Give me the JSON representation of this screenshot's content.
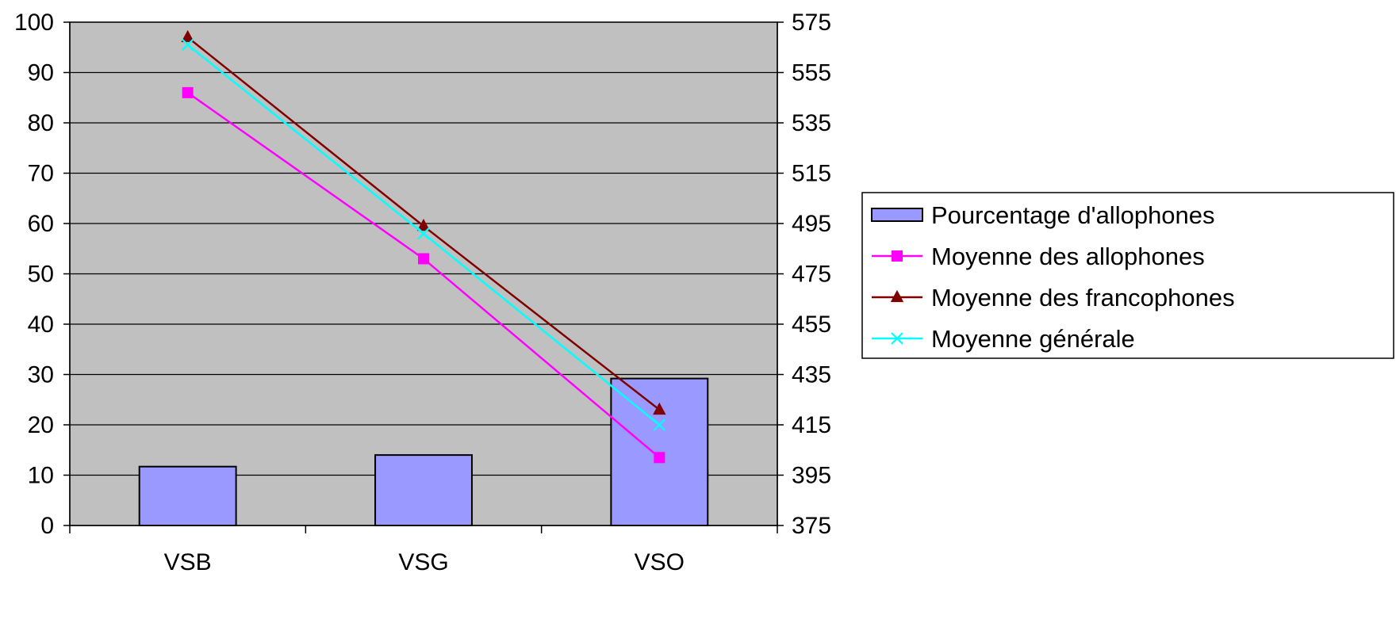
{
  "chart_data": {
    "type": "bar",
    "title": "",
    "xlabel": "",
    "ylabel": "",
    "y2label": "",
    "categories": [
      "VSB",
      "VSG",
      "VSO"
    ],
    "ylim": [
      0,
      100
    ],
    "y2lim": [
      375,
      575
    ],
    "yticks": [
      "0",
      "10",
      "20",
      "30",
      "40",
      "50",
      "60",
      "70",
      "80",
      "90",
      "100"
    ],
    "y2ticks": [
      "375",
      "395",
      "415",
      "435",
      "455",
      "475",
      "495",
      "515",
      "535",
      "555",
      "575"
    ],
    "grid": true,
    "legend_position": "right",
    "plot_background": "#C0C0C0",
    "series": [
      {
        "name": "Pourcentage d'allophones",
        "type": "bar",
        "axis": "left",
        "color": "#9999FF",
        "values": [
          11.7,
          14,
          29.2
        ]
      },
      {
        "name": "Moyenne des allophones",
        "type": "line",
        "axis": "right",
        "color": "#FF00FF",
        "marker": "square",
        "values": [
          547,
          481,
          402
        ]
      },
      {
        "name": "Moyenne des francophones",
        "type": "line",
        "axis": "right",
        "color": "#800000",
        "marker": "triangle",
        "values": [
          569,
          494,
          421
        ]
      },
      {
        "name": "Moyenne générale",
        "type": "line",
        "axis": "right",
        "color": "#00FFFF",
        "marker": "x",
        "values": [
          566,
          491,
          415
        ]
      }
    ]
  }
}
